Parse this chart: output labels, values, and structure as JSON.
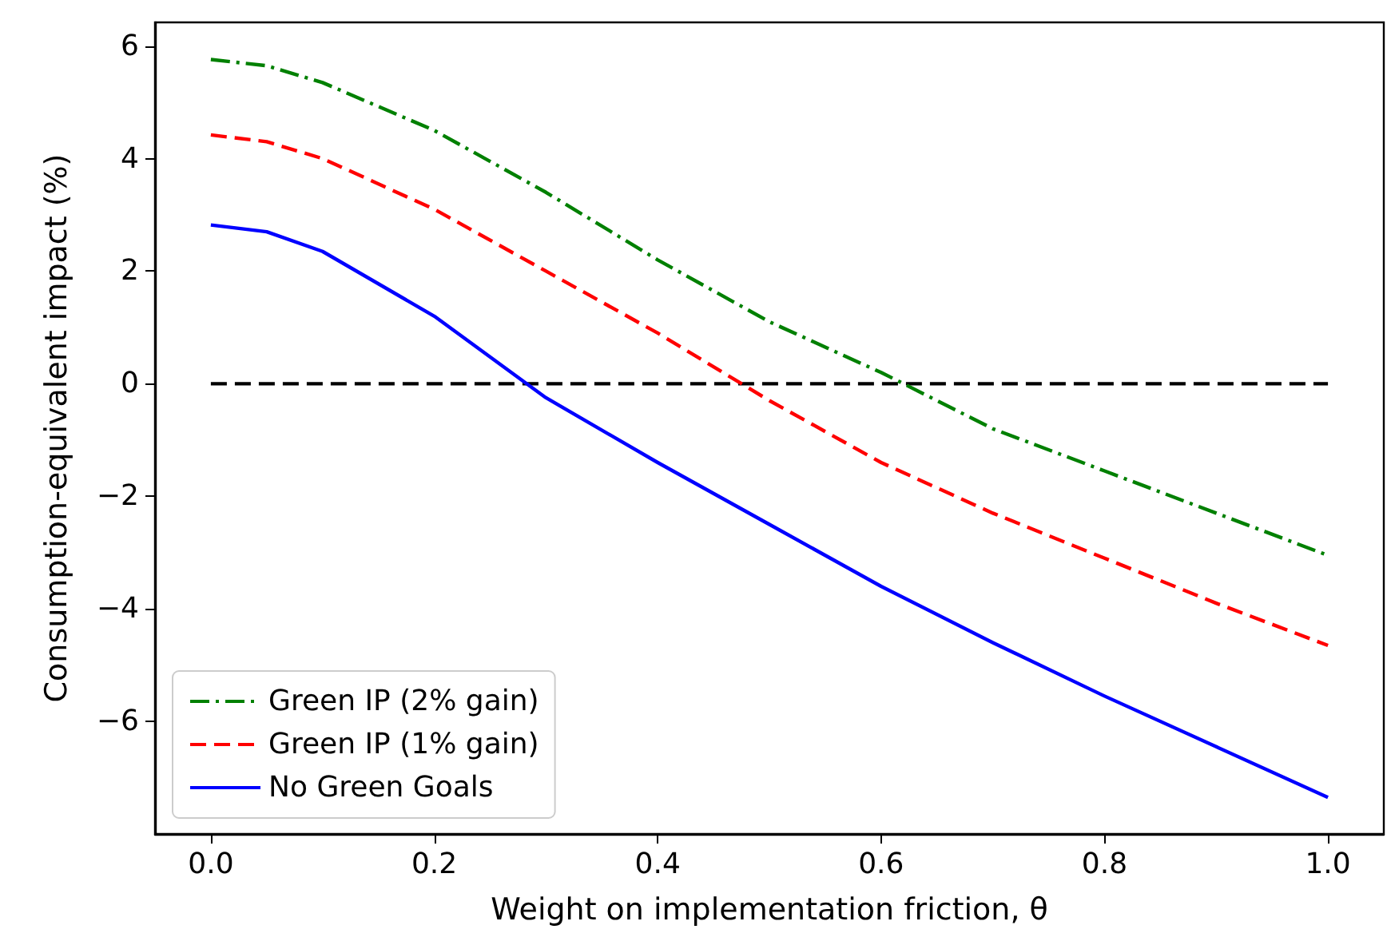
{
  "chart_data": {
    "type": "line",
    "xlabel": "Weight on implementation friction, θ",
    "ylabel": "Consumption-equivalent impact (%)",
    "xlim": [
      -0.05,
      1.05
    ],
    "xticks": [
      {
        "value": 0,
        "label": "0.0"
      },
      0.2,
      0.4,
      0.6,
      0.8,
      {
        "value": 1,
        "label": "1.0"
      }
    ],
    "ylim": [
      -8,
      6.42
    ],
    "yticks": [
      -6,
      -4,
      -2,
      0,
      2,
      4,
      6
    ],
    "grid": false,
    "legend": "bottom left",
    "marker": "none",
    "x": [
      0,
      0.05,
      0.1,
      0.2,
      0.3,
      0.4,
      0.5,
      0.6,
      0.7,
      0.8,
      0.9,
      1.0
    ],
    "series": [
      {
        "name": "Green IP (2% gain)",
        "color": "#008000",
        "line_style": "dashdot",
        "values": [
          5.76,
          5.65,
          5.35,
          4.5,
          3.4,
          2.2,
          1.1,
          0.2,
          -0.8,
          -1.55,
          -2.3,
          -3.05
        ]
      },
      {
        "name": "Green IP (1% gain)",
        "color": "#ff0000",
        "line_style": "dashed",
        "values": [
          4.42,
          4.3,
          4.0,
          3.1,
          2.0,
          0.9,
          -0.3,
          -1.4,
          -2.3,
          -3.1,
          -3.9,
          -4.65
        ]
      },
      {
        "name": "No Green Goals",
        "color": "#0000ff",
        "line_style": "solid",
        "values": [
          2.82,
          2.7,
          2.35,
          1.2,
          -0.25,
          -1.4,
          -2.5,
          -3.6,
          -4.6,
          -5.55,
          -6.45,
          -7.35
        ]
      }
    ],
    "ref_lines": [
      {
        "axis": "y",
        "value": 0,
        "color": "#000000",
        "line_style": "dashed"
      }
    ]
  }
}
